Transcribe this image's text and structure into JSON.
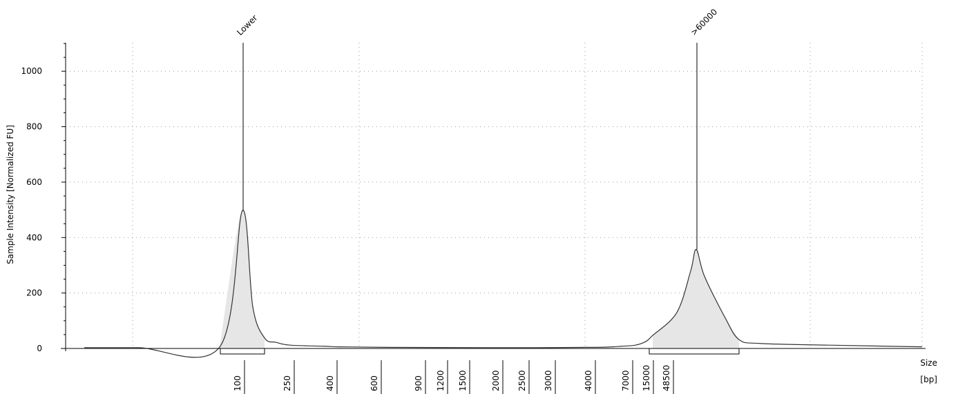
{
  "chart_data": {
    "type": "area",
    "ylabel": "Sample Intensity [Normalized FU]",
    "xlabel": [
      "Size",
      "[bp]"
    ],
    "yticks": [
      0,
      200,
      400,
      600,
      800,
      1000
    ],
    "ylim": [
      0,
      1120
    ],
    "grid": true,
    "ladder_ticks": [
      "100",
      "250",
      "400",
      "600",
      "900",
      "1200",
      "1500",
      "2000",
      "2500",
      "3000",
      "4000",
      "7000",
      "15000",
      "48500"
    ],
    "peaks": [
      {
        "label": "Lower",
        "size": "100",
        "height": 497
      },
      {
        "label": ">60000",
        "size": ">60000",
        "height": 357
      }
    ],
    "trace": {
      "size_labels": [
        "",
        "",
        "",
        "100",
        "",
        "",
        "",
        "250",
        "",
        "400",
        "",
        "600",
        "",
        "",
        "2000",
        "",
        "",
        "",
        "15000",
        "",
        "",
        ">60000",
        "",
        "",
        "",
        "",
        "",
        ""
      ],
      "intensity": [
        3,
        3,
        5,
        497,
        150,
        38,
        22,
        12,
        8,
        6,
        4,
        3,
        3,
        4,
        5,
        8,
        12,
        25,
        47,
        130,
        280,
        357,
        260,
        110,
        32,
        18,
        12,
        6
      ]
    },
    "marker_regions": [
      {
        "label": "Lower",
        "from": "~80",
        "to": "~150"
      },
      {
        "label": ">60000",
        "from": "~15000",
        "to": ">60000"
      }
    ]
  }
}
